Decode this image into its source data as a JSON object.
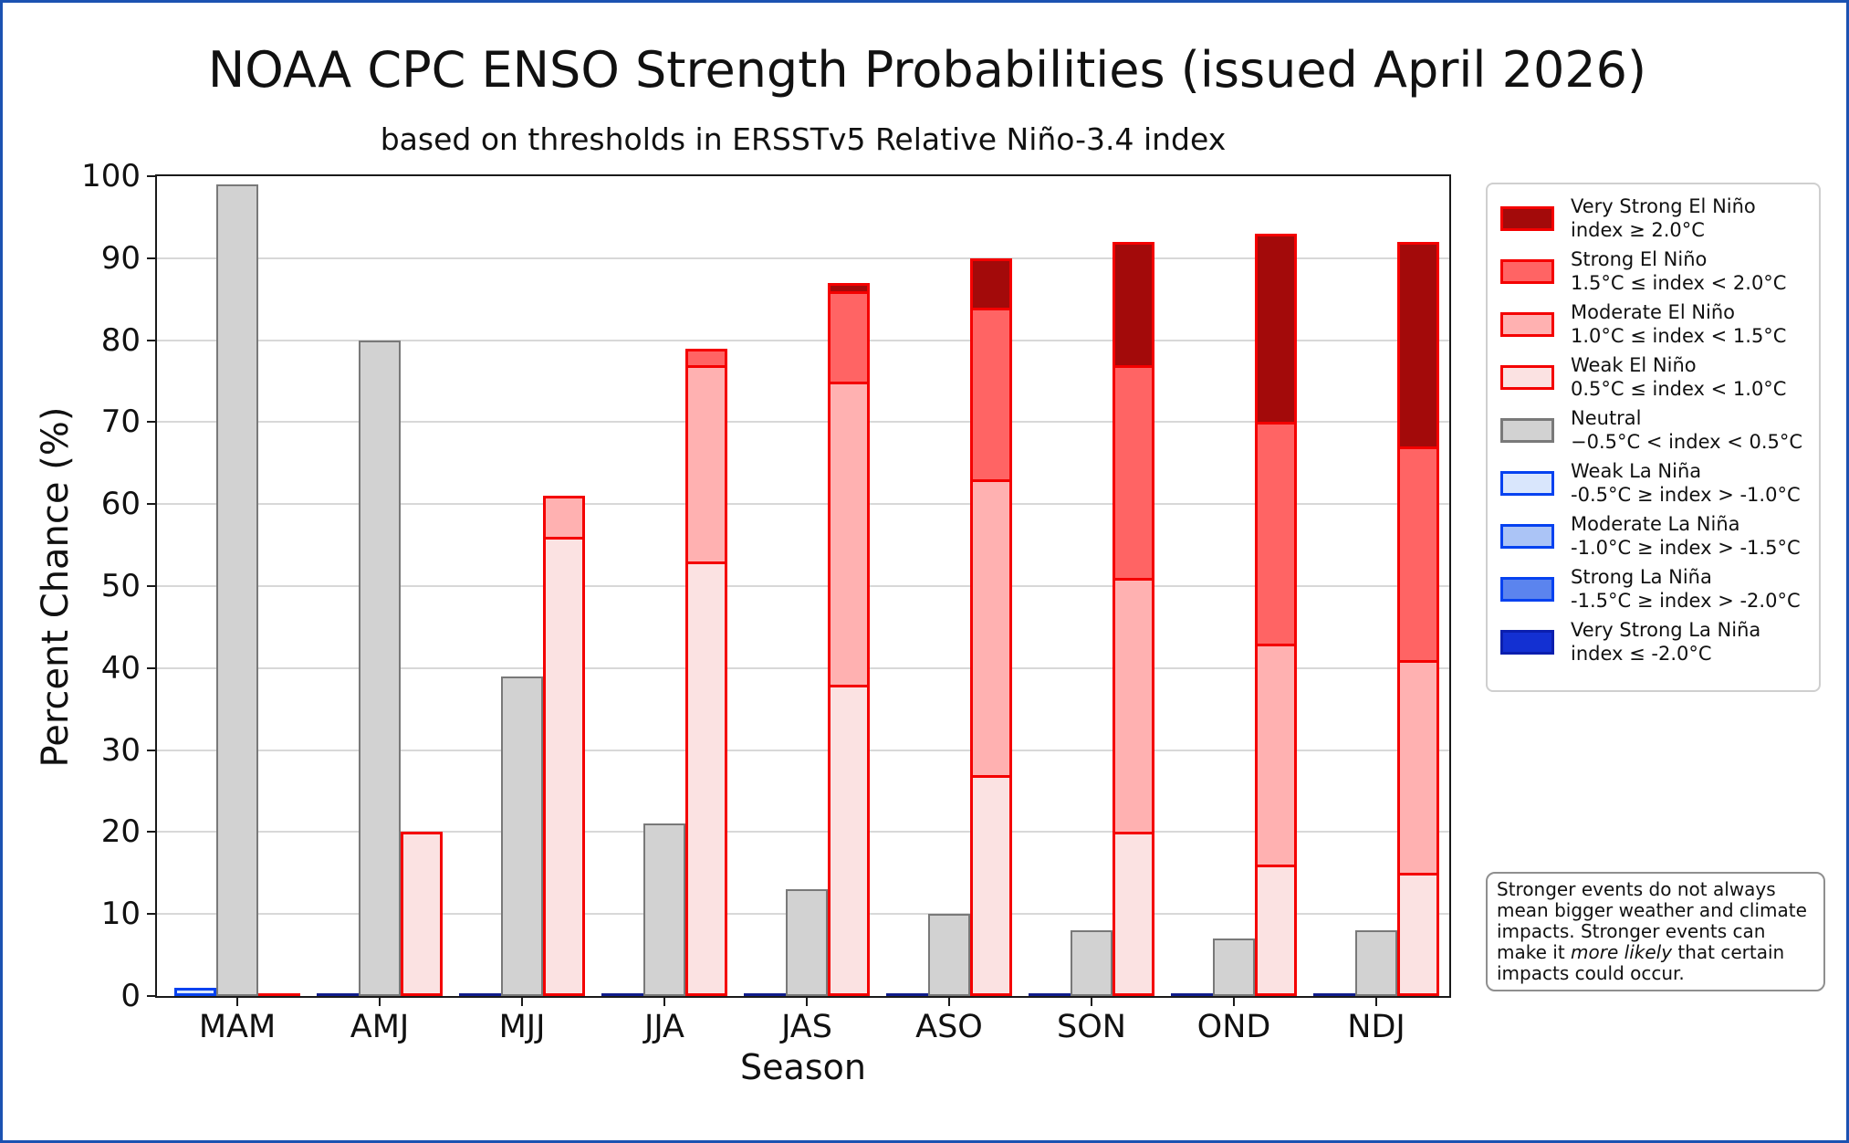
{
  "title": "NOAA CPC ENSO Strength Probabilities (issued April 2026)",
  "subtitle": "based on thresholds in ERSSTv5 Relative Niño-3.4 index",
  "axes": {
    "ylabel": "Percent Chance (%)",
    "xlabel": "Season",
    "ylim": [
      0,
      100
    ],
    "ytick_step": 10,
    "grid": "horizontal"
  },
  "colors": {
    "very_strong_el_nino": "#a30a0a",
    "strong_el_nino": "#ff6464",
    "moderate_el_nino": "#ffb1b1",
    "weak_el_nino": "#fbe2e2",
    "neutral": "#d2d2d2",
    "weak_la_nina": "#d9e6fc",
    "moderate_la_nina": "#abc4f6",
    "strong_la_nina": "#5b84ee",
    "very_strong_la_nina": "#1330d2",
    "el_nino_edge": "#f40000",
    "neutral_edge": "#797979",
    "la_nina_edge": "#0642f0",
    "very_strong_la_nina_edge": "#0b1fae",
    "la_nina_zero_line": "#101c8c",
    "el_nino_zero_line": "#f40000",
    "figure_border": "#1b52b1",
    "gridline": "#d8d8d8"
  },
  "chart_data": {
    "type": "bar",
    "stacked": true,
    "legend_position": "right",
    "categories": [
      "MAM",
      "AMJ",
      "MJJ",
      "JJA",
      "JAS",
      "ASO",
      "SON",
      "OND",
      "NDJ"
    ],
    "bar_groups_per_category": [
      "la_nina",
      "neutral",
      "el_nino"
    ],
    "series": [
      {
        "name": "Weak La Niña",
        "group": "la_nina",
        "color": "weak_la_nina",
        "edge": "la_nina_edge",
        "values": [
          1,
          0,
          0,
          0,
          0,
          0,
          0,
          0,
          0
        ]
      },
      {
        "name": "Moderate La Niña",
        "group": "la_nina",
        "color": "moderate_la_nina",
        "edge": "la_nina_edge",
        "values": [
          0,
          0,
          0,
          0,
          0,
          0,
          0,
          0,
          0
        ]
      },
      {
        "name": "Strong La Niña",
        "group": "la_nina",
        "color": "strong_la_nina",
        "edge": "la_nina_edge",
        "values": [
          0,
          0,
          0,
          0,
          0,
          0,
          0,
          0,
          0
        ]
      },
      {
        "name": "Very Strong La Niña",
        "group": "la_nina",
        "color": "very_strong_la_nina",
        "edge": "very_strong_la_nina_edge",
        "values": [
          0,
          0,
          0,
          0,
          0,
          0,
          0,
          0,
          0
        ]
      },
      {
        "name": "Neutral",
        "group": "neutral",
        "color": "neutral",
        "edge": "neutral_edge",
        "values": [
          99,
          80,
          39,
          21,
          13,
          10,
          8,
          7,
          8
        ]
      },
      {
        "name": "Weak El Niño",
        "group": "el_nino",
        "color": "weak_el_nino",
        "edge": "el_nino_edge",
        "values": [
          0,
          20,
          56,
          53,
          38,
          27,
          20,
          16,
          15
        ]
      },
      {
        "name": "Moderate El Niño",
        "group": "el_nino",
        "color": "moderate_el_nino",
        "edge": "el_nino_edge",
        "values": [
          0,
          0,
          5,
          24,
          37,
          36,
          31,
          27,
          26
        ]
      },
      {
        "name": "Strong El Niño",
        "group": "el_nino",
        "color": "strong_el_nino",
        "edge": "el_nino_edge",
        "values": [
          0,
          0,
          0,
          2,
          11,
          21,
          26,
          27,
          26
        ]
      },
      {
        "name": "Very Strong El Niño",
        "group": "el_nino",
        "color": "very_strong_el_nino",
        "edge": "el_nino_edge",
        "values": [
          0,
          0,
          0,
          0,
          1,
          6,
          15,
          23,
          25
        ]
      }
    ]
  },
  "legend": {
    "items": [
      {
        "label": "Very Strong El Niño",
        "range": "index ≥ 2.0°C",
        "fill": "very_strong_el_nino",
        "edge": "el_nino_edge"
      },
      {
        "label": "Strong El Niño",
        "range": "1.5°C ≤ index < 2.0°C",
        "fill": "strong_el_nino",
        "edge": "el_nino_edge"
      },
      {
        "label": "Moderate El Niño",
        "range": "1.0°C ≤ index < 1.5°C",
        "fill": "moderate_el_nino",
        "edge": "el_nino_edge"
      },
      {
        "label": "Weak El Niño",
        "range": "0.5°C ≤ index < 1.0°C",
        "fill": "weak_el_nino",
        "edge": "el_nino_edge"
      },
      {
        "label": "Neutral",
        "range": "−0.5°C < index < 0.5°C",
        "fill": "neutral",
        "edge": "neutral_edge"
      },
      {
        "label": "Weak La Niña",
        "range": "-0.5°C ≥ index > -1.0°C",
        "fill": "weak_la_nina",
        "edge": "la_nina_edge"
      },
      {
        "label": "Moderate La Niña",
        "range": "-1.0°C ≥ index > -1.5°C",
        "fill": "moderate_la_nina",
        "edge": "la_nina_edge"
      },
      {
        "label": "Strong La Niña",
        "range": "-1.5°C ≥ index > -2.0°C",
        "fill": "strong_la_nina",
        "edge": "la_nina_edge"
      },
      {
        "label": "Very Strong La Niña",
        "range": "index ≤ -2.0°C",
        "fill": "very_strong_la_nina",
        "edge": "very_strong_la_nina_edge"
      }
    ]
  },
  "note": {
    "lines": [
      [
        {
          "t": "Stronger events do not always"
        }
      ],
      [
        {
          "t": "mean bigger weather and climate"
        }
      ],
      [
        {
          "t": "impacts. Stronger events can"
        }
      ],
      [
        {
          "t": "make it "
        },
        {
          "t": "more likely",
          "italic": true
        },
        {
          "t": " that certain"
        }
      ],
      [
        {
          "t": "impacts could occur."
        }
      ]
    ]
  }
}
